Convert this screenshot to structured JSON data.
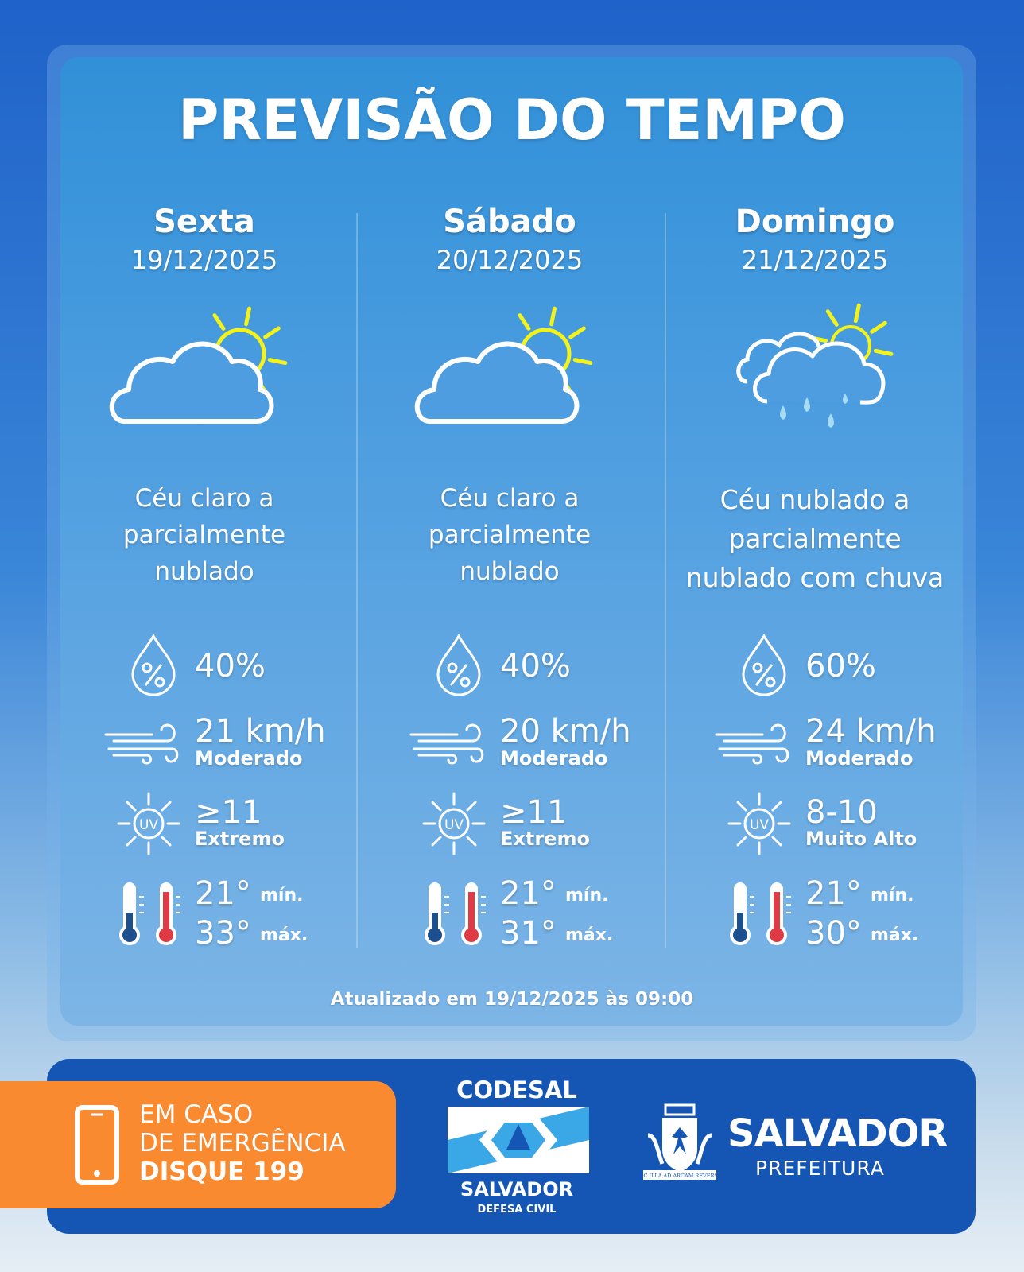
{
  "title": "PREVISÃO DO TEMPO",
  "days": [
    {
      "name": "Sexta",
      "date": "19/12/2025",
      "icon": "partly-cloudy-icon",
      "desc": [
        "Céu claro a",
        "parcialmente",
        "nublado"
      ],
      "rain": "40%",
      "wind": "21 km/h",
      "wind_label": "Moderado",
      "uv": "≥11",
      "uv_label": "Extremo",
      "min": "21°",
      "max": "33°"
    },
    {
      "name": "Sábado",
      "date": "20/12/2025",
      "icon": "partly-cloudy-icon",
      "desc": [
        "Céu claro a",
        "parcialmente",
        "nublado"
      ],
      "rain": "40%",
      "wind": "20 km/h",
      "wind_label": "Moderado",
      "uv": "≥11",
      "uv_label": "Extremo",
      "min": "21°",
      "max": "31°"
    },
    {
      "name": "Domingo",
      "date": "21/12/2025",
      "icon": "rain-cloud-sun-icon",
      "desc": [
        "Céu nublado a",
        "parcialmente",
        "nublado com chuva"
      ],
      "rain": "60%",
      "wind": "24 km/h",
      "wind_label": "Moderado",
      "uv": "8-10",
      "uv_label": "Muito Alto",
      "min": "21°",
      "max": "30°"
    }
  ],
  "labels": {
    "min": "mín.",
    "max": "máx."
  },
  "updated": "Atualizado em 19/12/2025 às 09:00",
  "footer": {
    "emergency": [
      "EM CASO",
      "DE EMERGÊNCIA",
      "DISQUE 199"
    ],
    "codesal": {
      "top": "CODESAL",
      "bottom": "SALVADOR",
      "sub": "DEFESA CIVIL"
    },
    "prefeitura": {
      "name": "SALVADOR",
      "sub": "PREFEITURA",
      "motto": "SIC ILLA AD ARCAM REVERSA"
    }
  },
  "colors": {
    "sun": "#f2f21c",
    "orange": "#f98a30",
    "footer": "#1556b5",
    "thermo_cold": "#1d4f8f",
    "thermo_hot": "#e03a44"
  }
}
